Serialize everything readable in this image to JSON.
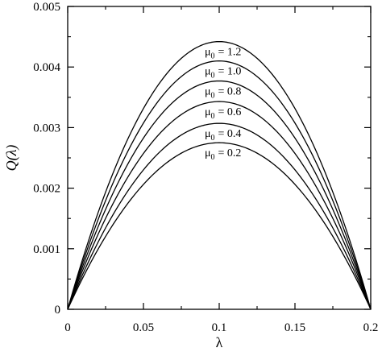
{
  "chart_data": {
    "type": "line",
    "xlabel": "λ",
    "ylabel": "Q(λ)",
    "xlim": [
      0,
      0.2
    ],
    "ylim": [
      0,
      0.005
    ],
    "xticks": [
      "0",
      "0.05",
      "0.1",
      "0.15",
      "0.2"
    ],
    "yticks": [
      "0",
      "0.001",
      "0.002",
      "0.003",
      "0.004",
      "0.005"
    ],
    "grid": false,
    "legend": "inline-labels-above-curve-peaks",
    "curve_shape": "symmetric parabola, Q(0)=Q(0.2)=0, peak at λ=0.1",
    "series": [
      {
        "name": "μ0 = 1.2",
        "mu": "μ",
        "sub": "0",
        "value": "= 1.2",
        "peak_x": 0.1,
        "peak_y": 0.00442
      },
      {
        "name": "μ0 = 1.0",
        "mu": "μ",
        "sub": "0",
        "value": "= 1.0",
        "peak_x": 0.1,
        "peak_y": 0.0041
      },
      {
        "name": "μ0 = 0.8",
        "mu": "μ",
        "sub": "0",
        "value": "= 0.8",
        "peak_x": 0.1,
        "peak_y": 0.00377
      },
      {
        "name": "μ0 = 0.6",
        "mu": "μ",
        "sub": "0",
        "value": "= 0.6",
        "peak_x": 0.1,
        "peak_y": 0.00343
      },
      {
        "name": "μ0 = 0.4",
        "mu": "μ",
        "sub": "0",
        "value": "= 0.4",
        "peak_x": 0.1,
        "peak_y": 0.00307
      },
      {
        "name": "μ0 = 0.2",
        "mu": "μ",
        "sub": "0",
        "value": "= 0.2",
        "peak_x": 0.1,
        "peak_y": 0.00275
      }
    ]
  }
}
